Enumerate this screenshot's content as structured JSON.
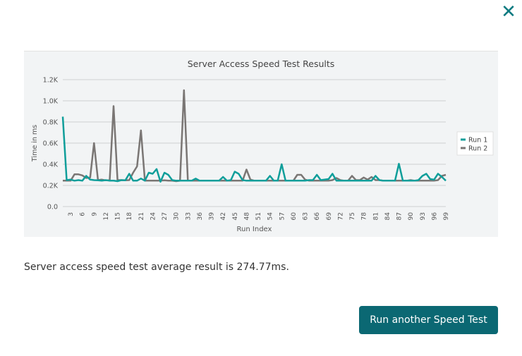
{
  "dialog": {
    "close_icon": "close-icon",
    "summary": "Server access speed test average result is 274.77ms.",
    "button_label": "Run another Speed Test"
  },
  "colors": {
    "run1": "#0f9e9a",
    "run2": "#7a7674",
    "button": "#0b6873",
    "accent": "#0e7a80"
  },
  "chart_data": {
    "type": "line",
    "title": "Server Access Speed Test Results",
    "xlabel": "Run Index",
    "ylabel": "Time in ms",
    "ylim": [
      0,
      1200
    ],
    "yticks": [
      "0.0",
      "0.2K",
      "0.4K",
      "0.6K",
      "0.8K",
      "1.0K",
      "1.2K"
    ],
    "xtick_labels": [
      "3",
      "6",
      "9",
      "12",
      "15",
      "18",
      "21",
      "24",
      "27",
      "30",
      "33",
      "36",
      "39",
      "42",
      "45",
      "48",
      "51",
      "54",
      "57",
      "60",
      "63",
      "66",
      "69",
      "72",
      "75",
      "78",
      "81",
      "84",
      "87",
      "90",
      "93",
      "96",
      "99"
    ],
    "grid": true,
    "legend": "right",
    "series": [
      {
        "name": "Run 1",
        "values": [
          850,
          250,
          255,
          245,
          250,
          245,
          290,
          255,
          250,
          248,
          245,
          250,
          245,
          245,
          240,
          250,
          248,
          310,
          245,
          245,
          265,
          245,
          320,
          310,
          355,
          235,
          320,
          300,
          250,
          245,
          245,
          245,
          245,
          245,
          265,
          245,
          245,
          245,
          245,
          245,
          245,
          280,
          245,
          250,
          330,
          310,
          250,
          245,
          245,
          245,
          245,
          245,
          245,
          290,
          245,
          245,
          400,
          245,
          245,
          245,
          245,
          245,
          245,
          250,
          250,
          300,
          250,
          255,
          260,
          310,
          245,
          245,
          245,
          245,
          245,
          245,
          245,
          245,
          245,
          245,
          290,
          250,
          245,
          245,
          245,
          245,
          405,
          245,
          245,
          245,
          245,
          250,
          290,
          310,
          260,
          255,
          310,
          280,
          245
        ]
      },
      {
        "name": "Run 2",
        "values": [
          245,
          245,
          245,
          305,
          305,
          295,
          270,
          275,
          600,
          250,
          255,
          248,
          248,
          950,
          250,
          250,
          248,
          250,
          320,
          380,
          720,
          245,
          245,
          245,
          245,
          245,
          248,
          245,
          245,
          240,
          245,
          1100,
          245,
          245,
          245,
          245,
          245,
          245,
          245,
          245,
          245,
          245,
          245,
          245,
          245,
          245,
          245,
          350,
          255,
          245,
          245,
          245,
          245,
          245,
          245,
          245,
          245,
          245,
          245,
          245,
          300,
          300,
          255,
          245,
          245,
          245,
          245,
          245,
          245,
          250,
          270,
          250,
          245,
          245,
          290,
          250,
          250,
          275,
          255,
          280,
          250,
          250,
          245,
          245,
          245,
          245,
          245,
          245,
          245,
          250,
          245,
          245,
          245,
          245,
          245,
          245,
          250,
          290,
          300
        ]
      }
    ]
  }
}
